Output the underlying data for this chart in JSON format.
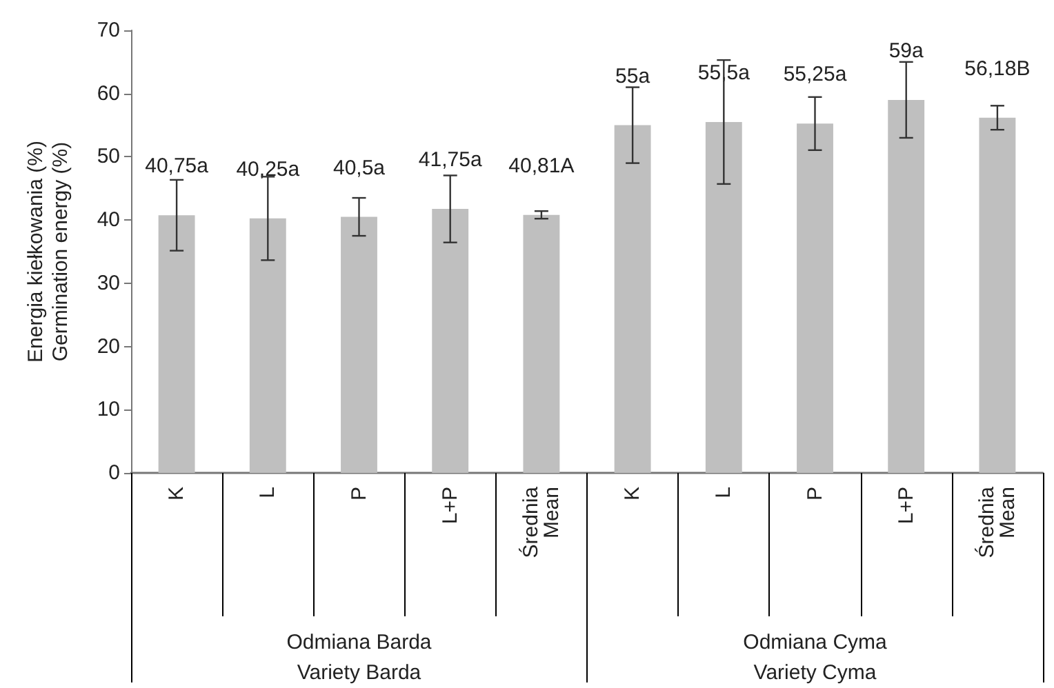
{
  "chart_data": {
    "type": "bar",
    "ylabel": "Energia kiełkowania (%)\nGermination energy (%)",
    "categories": [
      "K",
      "L",
      "P",
      "L+P",
      "Średnia\nMean",
      "K",
      "L",
      "P",
      "L+P",
      "Średnia\nMean"
    ],
    "values": [
      40.75,
      40.25,
      40.5,
      41.75,
      40.81,
      55,
      55.5,
      55.25,
      59,
      56.18
    ],
    "errors": [
      5.6,
      6.6,
      3.0,
      5.3,
      0.6,
      6.0,
      9.8,
      4.2,
      6.0,
      1.9
    ],
    "value_labels": [
      "40,75a",
      "40,25a",
      "40,5a",
      "41,75a",
      "40,81A",
      "55a",
      "55,5a",
      "55,25a",
      "59a",
      "56,18B"
    ],
    "color": "#bfbfbf",
    "annotations": [
      "Odmiana Barda\nVariety Barda",
      "Odmiana Cyma\nVariety Cyma"
    ],
    "ylim": [
      0,
      70
    ],
    "yticks": [
      0,
      10,
      20,
      30,
      40,
      50,
      60,
      70
    ],
    "grid": false
  }
}
